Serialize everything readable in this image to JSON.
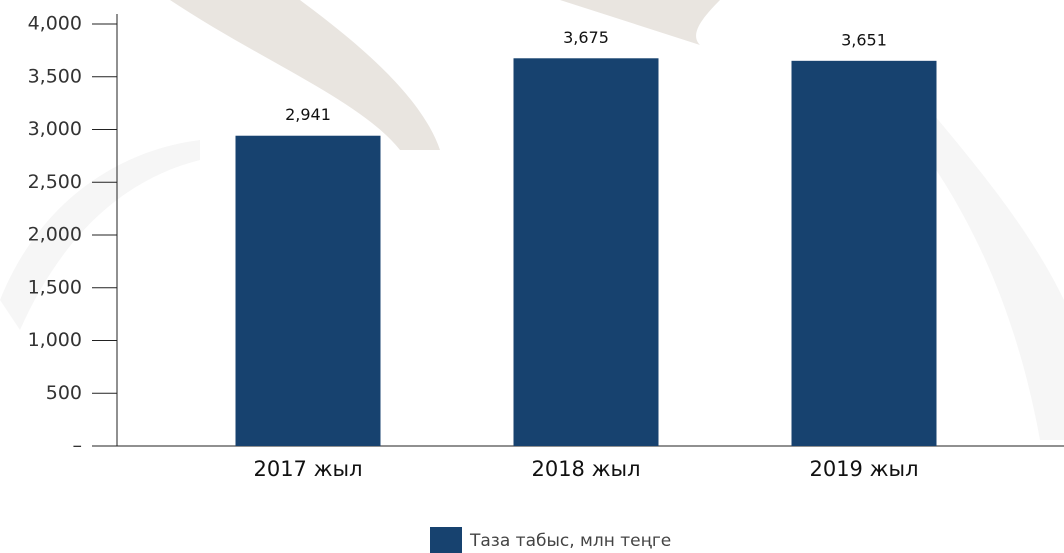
{
  "chart_data": {
    "type": "bar",
    "categories": [
      "2017 жыл",
      "2018 жыл",
      "2019 жыл"
    ],
    "series": [
      {
        "name": "Таза табыс, млн теңге",
        "color": "#17426f",
        "values": [
          2941,
          3675,
          3651
        ],
        "value_labels": [
          "2,941",
          "3,675",
          "3,651"
        ]
      }
    ],
    "ylim": [
      0,
      4000
    ],
    "yticks": [
      {
        "value": 0,
        "label": "–"
      },
      500,
      {
        "value": 1000,
        "label": "1,000"
      },
      {
        "value": 1500,
        "label": "1,500"
      },
      {
        "value": 2000,
        "label": "2,000"
      },
      {
        "value": 2500,
        "label": "2,500"
      },
      {
        "value": 3000,
        "label": "3,000"
      },
      {
        "value": 3500,
        "label": "3,500"
      },
      {
        "value": 4000,
        "label": "4,000"
      }
    ],
    "legend": "bottom"
  }
}
